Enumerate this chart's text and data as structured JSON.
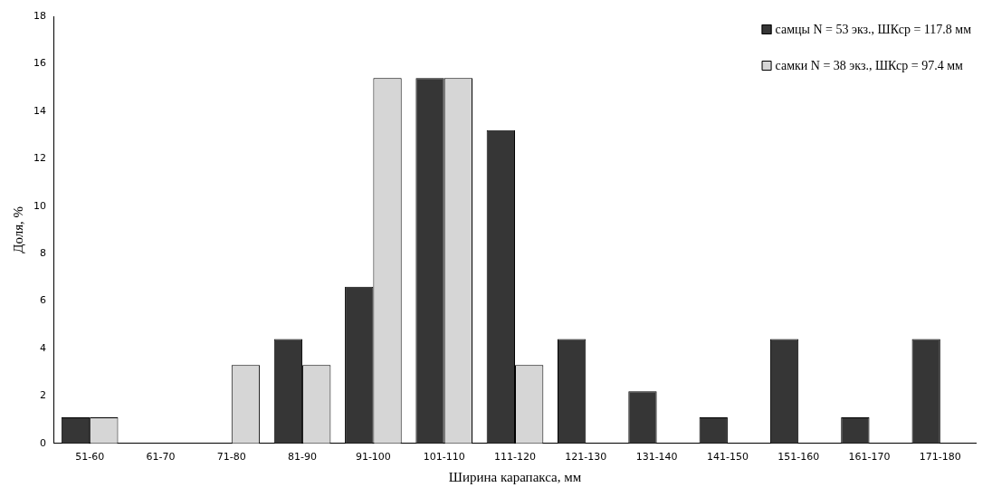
{
  "chart_data": {
    "type": "bar",
    "xlabel": "Ширина карапакса, мм",
    "ylabel": "Доля, %",
    "categories": [
      "51-60",
      "61-70",
      "71-80",
      "81-90",
      "91-100",
      "101-110",
      "111-120",
      "121-130",
      "131-140",
      "141-150",
      "151-160",
      "161-170",
      "171-180"
    ],
    "series": [
      {
        "name": "самцы N = 53 экз., ШКср = 117.8 мм",
        "color": "#363636",
        "values": [
          1.1,
          null,
          null,
          4.4,
          6.6,
          15.4,
          13.2,
          4.4,
          2.2,
          1.1,
          4.4,
          1.1,
          4.4
        ]
      },
      {
        "name": "самки N = 38 экз., ШКср = 97.4 мм",
        "color": "#d6d6d6",
        "values": [
          1.1,
          null,
          3.3,
          3.3,
          15.4,
          15.4,
          3.3,
          null,
          null,
          null,
          null,
          null,
          null
        ]
      }
    ],
    "ylim": [
      0,
      18
    ],
    "yticks": [
      0,
      2,
      4,
      6,
      8,
      10,
      12,
      14,
      16,
      18
    ],
    "grid": false,
    "legend": "top right"
  }
}
